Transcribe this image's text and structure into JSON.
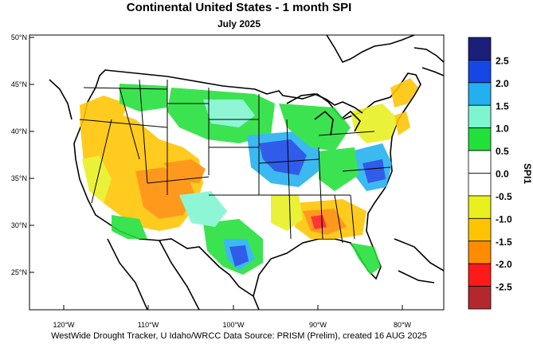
{
  "title": "Continental United States - 1 month SPI",
  "subtitle": "July 2025",
  "footer": "WestWide Drought Tracker, U Idaho/WRCC Data Source: PRISM (Prelim), created 16 AUG 2025",
  "map": {
    "lat_labels": [
      "50°N",
      "45°N",
      "40°N",
      "35°N",
      "30°N",
      "25°N"
    ],
    "lon_labels": [
      "120°W",
      "110°W",
      "100°W",
      "90°W",
      "80°W"
    ]
  },
  "colorbar": {
    "title": "SPI1",
    "labels": [
      "2.5",
      "2.0",
      "1.5",
      "1.0",
      "0.5",
      "0.0",
      "-0.5",
      "-1.0",
      "-1.5",
      "-2.0",
      "-2.5"
    ],
    "colors": [
      "#1a1f7a",
      "#1546e6",
      "#22b0f0",
      "#7ff5cf",
      "#22e03a",
      "#ffffff",
      "#ffffff",
      "#e8f01e",
      "#ffc400",
      "#ff8c00",
      "#ff1a1a",
      "#b3282d"
    ]
  }
}
